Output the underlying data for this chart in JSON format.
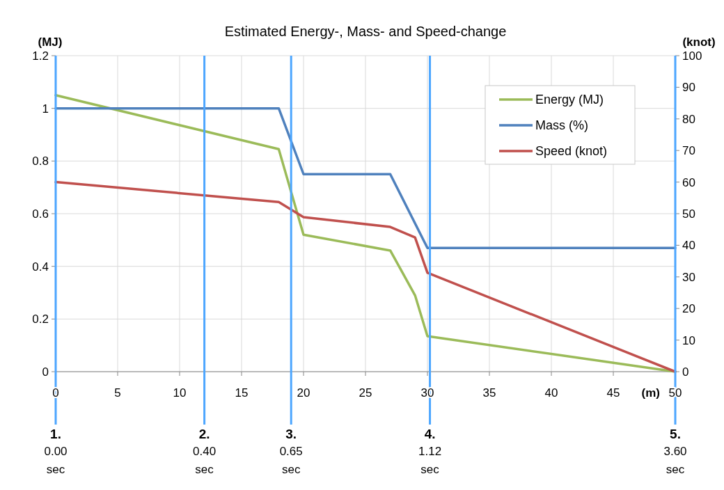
{
  "chart_data": {
    "type": "line",
    "title": "Estimated Energy-, Mass- and Speed-change",
    "xlabel": "(m)",
    "ylabel": "(MJ)",
    "y2label": "(knot)",
    "x": [
      0,
      18,
      20,
      27,
      29,
      30,
      50
    ],
    "series": [
      {
        "name": "Energy (MJ)",
        "color": "#9bbb59",
        "values": [
          1.05,
          0.845,
          0.52,
          0.46,
          0.29,
          0.135,
          0
        ]
      },
      {
        "name": "Mass (%)",
        "color": "#4f81bd",
        "x": [
          0,
          18,
          20,
          27,
          30,
          50
        ],
        "values": [
          1,
          1,
          0.75,
          0.75,
          0.47,
          0.47
        ]
      },
      {
        "name": "Speed (knot)",
        "color": "#c0504d",
        "axis": "y2",
        "values": [
          60,
          53.7,
          48.9,
          45.8,
          42.5,
          31.3,
          0
        ]
      }
    ],
    "xlim": [
      0,
      50
    ],
    "xticks": [
      0,
      5,
      10,
      15,
      20,
      25,
      30,
      35,
      40,
      45,
      50
    ],
    "ylim": [
      0,
      1.2
    ],
    "yticks": [
      0,
      0.2,
      0.4,
      0.6,
      0.8,
      1,
      1.2
    ],
    "y2lim": [
      0,
      100
    ],
    "y2ticks": [
      0,
      10,
      20,
      30,
      40,
      50,
      60,
      70,
      80,
      90,
      100
    ],
    "ref_lines": [
      {
        "axis": "x",
        "value": 0,
        "label": "1.\n0.00\nsec",
        "color": "#4da6ff"
      },
      {
        "axis": "x",
        "value": 12,
        "label": "2.\n0.40\nsec",
        "color": "#4da6ff"
      },
      {
        "axis": "x",
        "value": 19,
        "label": "3.\n0.65\nsec",
        "color": "#4da6ff"
      },
      {
        "axis": "x",
        "value": 30.2,
        "label": "4.\n1.12\nsec",
        "color": "#4da6ff"
      },
      {
        "axis": "x",
        "value": 50,
        "label": "5.\n3.60\nsec",
        "color": "#4da6ff"
      }
    ],
    "grid": true,
    "legend": "top right",
    "marker": "none",
    "line_style": "solid"
  }
}
